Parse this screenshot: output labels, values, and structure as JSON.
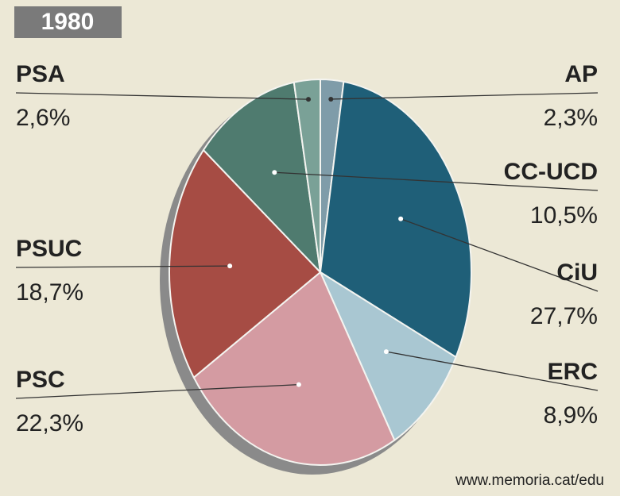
{
  "chart_data": {
    "type": "pie",
    "title": "1980",
    "categories": [
      "AP",
      "CiU",
      "ERC",
      "PSC",
      "PSUC",
      "CC-UCD",
      "PSA"
    ],
    "values": [
      2.3,
      27.7,
      8.9,
      22.3,
      18.7,
      10.5,
      2.6
    ],
    "value_labels": [
      "2,3%",
      "27,7%",
      "8,9%",
      "22,3%",
      "18,7%",
      "10,5%",
      "2,6%"
    ],
    "colors": [
      "#7f9ca9",
      "#1f5f78",
      "#a9c7d2",
      "#d49ba2",
      "#a64c44",
      "#4f7b6f",
      "#7aa197"
    ],
    "source": "www.memoria.cat/edu"
  }
}
